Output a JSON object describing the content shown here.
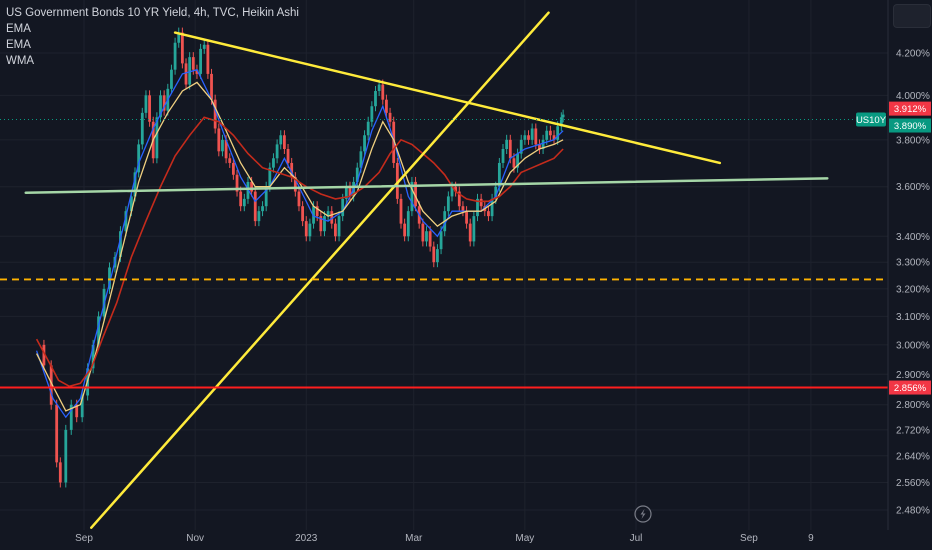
{
  "header": {
    "title": "US Government Bonds 10 YR Yield, 4h, TVC, Heikin Ashi",
    "indicators": [
      "EMA",
      "EMA",
      "WMA"
    ]
  },
  "symbol_tag": "US10Y",
  "chart_data": {
    "type": "line",
    "title": "US Government Bonds 10 YR Yield, 4h, TVC, Heikin Ashi",
    "y_axis": {
      "ticks": [
        "4.200%",
        "4.000%",
        "3.800%",
        "3.600%",
        "3.400%",
        "3.300%",
        "3.200%",
        "3.100%",
        "3.000%",
        "2.900%",
        "2.800%",
        "2.720%",
        "2.640%",
        "2.560%",
        "2.480%"
      ],
      "tick_values": [
        4.2,
        4.0,
        3.8,
        3.6,
        3.4,
        3.3,
        3.2,
        3.1,
        3.0,
        2.9,
        2.8,
        2.72,
        2.64,
        2.56,
        2.48
      ],
      "scale": "log",
      "side": "right"
    },
    "x_axis": {
      "ticks": [
        "Sep",
        "Nov",
        "2023",
        "Mar",
        "May",
        "Jul",
        "Sep",
        "9"
      ],
      "tick_days": [
        62,
        123,
        184,
        243,
        304,
        365,
        427,
        461
      ]
    },
    "price_labels": [
      {
        "value": "3.912%",
        "color": "#f23645"
      },
      {
        "value": "3.890%",
        "color": "#089981"
      },
      {
        "value": "2.856%",
        "color": "#f23645"
      }
    ],
    "series": [
      {
        "kind": "price",
        "points": [
          [
            36,
            3.0
          ],
          [
            40,
            2.93
          ],
          [
            44,
            2.8
          ],
          [
            47,
            2.62
          ],
          [
            49,
            2.56
          ],
          [
            52,
            2.72
          ],
          [
            55,
            2.8
          ],
          [
            58,
            2.76
          ],
          [
            61,
            2.83
          ],
          [
            64,
            2.92
          ],
          [
            67,
            3.0
          ],
          [
            70,
            3.1
          ],
          [
            73,
            3.2
          ],
          [
            76,
            3.28
          ],
          [
            79,
            3.32
          ],
          [
            82,
            3.42
          ],
          [
            85,
            3.5
          ],
          [
            88,
            3.56
          ],
          [
            90,
            3.66
          ],
          [
            92,
            3.78
          ],
          [
            94,
            3.92
          ],
          [
            96,
            4.0
          ],
          [
            98,
            3.88
          ],
          [
            100,
            3.72
          ],
          [
            102,
            3.9
          ],
          [
            104,
            4.0
          ],
          [
            106,
            3.93
          ],
          [
            108,
            4.03
          ],
          [
            110,
            4.12
          ],
          [
            112,
            4.25
          ],
          [
            114,
            4.3
          ],
          [
            116,
            4.15
          ],
          [
            118,
            4.05
          ],
          [
            120,
            4.18
          ],
          [
            122,
            4.12
          ],
          [
            124,
            4.1
          ],
          [
            126,
            4.22
          ],
          [
            128,
            4.24
          ],
          [
            130,
            4.1
          ],
          [
            132,
            3.98
          ],
          [
            134,
            3.85
          ],
          [
            136,
            3.75
          ],
          [
            138,
            3.8
          ],
          [
            140,
            3.72
          ],
          [
            142,
            3.7
          ],
          [
            144,
            3.65
          ],
          [
            146,
            3.58
          ],
          [
            148,
            3.52
          ],
          [
            150,
            3.55
          ],
          [
            152,
            3.62
          ],
          [
            154,
            3.58
          ],
          [
            156,
            3.46
          ],
          [
            158,
            3.5
          ],
          [
            160,
            3.52
          ],
          [
            162,
            3.6
          ],
          [
            164,
            3.68
          ],
          [
            166,
            3.72
          ],
          [
            168,
            3.78
          ],
          [
            170,
            3.82
          ],
          [
            172,
            3.76
          ],
          [
            174,
            3.7
          ],
          [
            176,
            3.64
          ],
          [
            178,
            3.58
          ],
          [
            180,
            3.52
          ],
          [
            182,
            3.46
          ],
          [
            184,
            3.4
          ],
          [
            186,
            3.45
          ],
          [
            188,
            3.52
          ],
          [
            190,
            3.48
          ],
          [
            192,
            3.42
          ],
          [
            194,
            3.48
          ],
          [
            196,
            3.5
          ],
          [
            198,
            3.45
          ],
          [
            200,
            3.4
          ],
          [
            202,
            3.48
          ],
          [
            204,
            3.55
          ],
          [
            206,
            3.6
          ],
          [
            208,
            3.56
          ],
          [
            210,
            3.62
          ],
          [
            212,
            3.68
          ],
          [
            214,
            3.75
          ],
          [
            216,
            3.82
          ],
          [
            218,
            3.88
          ],
          [
            220,
            3.95
          ],
          [
            222,
            4.02
          ],
          [
            224,
            4.05
          ],
          [
            226,
            3.98
          ],
          [
            228,
            3.92
          ],
          [
            230,
            3.88
          ],
          [
            232,
            3.7
          ],
          [
            234,
            3.55
          ],
          [
            236,
            3.45
          ],
          [
            238,
            3.4
          ],
          [
            240,
            3.5
          ],
          [
            242,
            3.62
          ],
          [
            244,
            3.52
          ],
          [
            246,
            3.45
          ],
          [
            248,
            3.38
          ],
          [
            250,
            3.42
          ],
          [
            252,
            3.36
          ],
          [
            254,
            3.3
          ],
          [
            256,
            3.35
          ],
          [
            258,
            3.42
          ],
          [
            260,
            3.5
          ],
          [
            262,
            3.56
          ],
          [
            264,
            3.6
          ],
          [
            266,
            3.58
          ],
          [
            268,
            3.52
          ],
          [
            270,
            3.5
          ],
          [
            272,
            3.45
          ],
          [
            274,
            3.38
          ],
          [
            276,
            3.48
          ],
          [
            278,
            3.55
          ],
          [
            280,
            3.52
          ],
          [
            282,
            3.5
          ],
          [
            284,
            3.48
          ],
          [
            286,
            3.55
          ],
          [
            288,
            3.6
          ],
          [
            290,
            3.7
          ],
          [
            292,
            3.76
          ],
          [
            294,
            3.8
          ],
          [
            296,
            3.72
          ],
          [
            298,
            3.68
          ],
          [
            300,
            3.74
          ],
          [
            302,
            3.8
          ],
          [
            304,
            3.82
          ],
          [
            306,
            3.8
          ],
          [
            308,
            3.85
          ],
          [
            310,
            3.78
          ],
          [
            312,
            3.76
          ],
          [
            314,
            3.8
          ],
          [
            316,
            3.84
          ],
          [
            318,
            3.82
          ],
          [
            320,
            3.8
          ],
          [
            322,
            3.86
          ],
          [
            324,
            3.9
          ],
          [
            325,
            3.912
          ]
        ]
      },
      {
        "kind": "ema-fast",
        "color": "#2962ff",
        "points": [
          [
            36,
            2.98
          ],
          [
            45,
            2.82
          ],
          [
            52,
            2.76
          ],
          [
            60,
            2.82
          ],
          [
            68,
            3.02
          ],
          [
            76,
            3.22
          ],
          [
            84,
            3.45
          ],
          [
            92,
            3.7
          ],
          [
            100,
            3.85
          ],
          [
            108,
            3.98
          ],
          [
            116,
            4.1
          ],
          [
            124,
            4.12
          ],
          [
            132,
            3.98
          ],
          [
            140,
            3.8
          ],
          [
            148,
            3.64
          ],
          [
            156,
            3.54
          ],
          [
            164,
            3.6
          ],
          [
            172,
            3.72
          ],
          [
            180,
            3.6
          ],
          [
            188,
            3.48
          ],
          [
            196,
            3.46
          ],
          [
            204,
            3.5
          ],
          [
            212,
            3.62
          ],
          [
            220,
            3.84
          ],
          [
            226,
            3.95
          ],
          [
            232,
            3.8
          ],
          [
            240,
            3.56
          ],
          [
            248,
            3.46
          ],
          [
            256,
            3.4
          ],
          [
            264,
            3.5
          ],
          [
            272,
            3.5
          ],
          [
            280,
            3.5
          ],
          [
            288,
            3.56
          ],
          [
            296,
            3.72
          ],
          [
            304,
            3.76
          ],
          [
            312,
            3.78
          ],
          [
            320,
            3.8
          ],
          [
            325,
            3.84
          ]
        ]
      },
      {
        "kind": "ema-slow",
        "color": "#f0d080",
        "points": [
          [
            36,
            2.97
          ],
          [
            45,
            2.86
          ],
          [
            52,
            2.78
          ],
          [
            60,
            2.8
          ],
          [
            68,
            2.96
          ],
          [
            76,
            3.16
          ],
          [
            84,
            3.38
          ],
          [
            92,
            3.62
          ],
          [
            100,
            3.8
          ],
          [
            108,
            3.92
          ],
          [
            116,
            4.02
          ],
          [
            124,
            4.06
          ],
          [
            132,
            3.98
          ],
          [
            140,
            3.84
          ],
          [
            148,
            3.7
          ],
          [
            156,
            3.6
          ],
          [
            164,
            3.6
          ],
          [
            172,
            3.68
          ],
          [
            180,
            3.62
          ],
          [
            188,
            3.52
          ],
          [
            196,
            3.48
          ],
          [
            204,
            3.5
          ],
          [
            212,
            3.58
          ],
          [
            220,
            3.76
          ],
          [
            226,
            3.88
          ],
          [
            232,
            3.8
          ],
          [
            240,
            3.62
          ],
          [
            248,
            3.5
          ],
          [
            256,
            3.44
          ],
          [
            264,
            3.48
          ],
          [
            272,
            3.5
          ],
          [
            280,
            3.5
          ],
          [
            288,
            3.54
          ],
          [
            296,
            3.66
          ],
          [
            304,
            3.72
          ],
          [
            312,
            3.76
          ],
          [
            320,
            3.78
          ],
          [
            325,
            3.8
          ]
        ]
      },
      {
        "kind": "wma",
        "color": "#c42b1c",
        "points": [
          [
            36,
            3.02
          ],
          [
            42,
            2.95
          ],
          [
            48,
            2.88
          ],
          [
            54,
            2.86
          ],
          [
            60,
            2.87
          ],
          [
            66,
            2.92
          ],
          [
            72,
            3.02
          ],
          [
            80,
            3.15
          ],
          [
            88,
            3.32
          ],
          [
            96,
            3.46
          ],
          [
            104,
            3.6
          ],
          [
            112,
            3.73
          ],
          [
            120,
            3.82
          ],
          [
            128,
            3.9
          ],
          [
            136,
            3.88
          ],
          [
            144,
            3.82
          ],
          [
            152,
            3.74
          ],
          [
            160,
            3.68
          ],
          [
            168,
            3.66
          ],
          [
            176,
            3.64
          ],
          [
            184,
            3.6
          ],
          [
            192,
            3.57
          ],
          [
            200,
            3.55
          ],
          [
            208,
            3.56
          ],
          [
            216,
            3.6
          ],
          [
            224,
            3.66
          ],
          [
            230,
            3.74
          ],
          [
            236,
            3.8
          ],
          [
            242,
            3.78
          ],
          [
            248,
            3.74
          ],
          [
            254,
            3.7
          ],
          [
            260,
            3.65
          ],
          [
            266,
            3.58
          ],
          [
            272,
            3.55
          ],
          [
            278,
            3.54
          ],
          [
            284,
            3.54
          ],
          [
            290,
            3.56
          ],
          [
            296,
            3.6
          ],
          [
            302,
            3.66
          ],
          [
            308,
            3.68
          ],
          [
            314,
            3.7
          ],
          [
            320,
            3.72
          ],
          [
            325,
            3.76
          ]
        ]
      }
    ],
    "annotations": [
      {
        "kind": "trendline",
        "color": "#ffeb3b",
        "from": [
          112,
          4.3
        ],
        "to": [
          411,
          3.7
        ]
      },
      {
        "kind": "trendline",
        "color": "#ffeb3b",
        "from": [
          66,
          2.43
        ],
        "to": [
          317,
          4.4
        ]
      },
      {
        "kind": "trendline",
        "color": "#a5d6a7",
        "from": [
          30,
          3.575
        ],
        "to": [
          470,
          3.635
        ]
      },
      {
        "kind": "hline",
        "color": "#ff1e1e",
        "value": 2.856,
        "style": "solid"
      },
      {
        "kind": "hline",
        "color": "#ffb300",
        "value": 3.235,
        "style": "dashed"
      }
    ]
  }
}
